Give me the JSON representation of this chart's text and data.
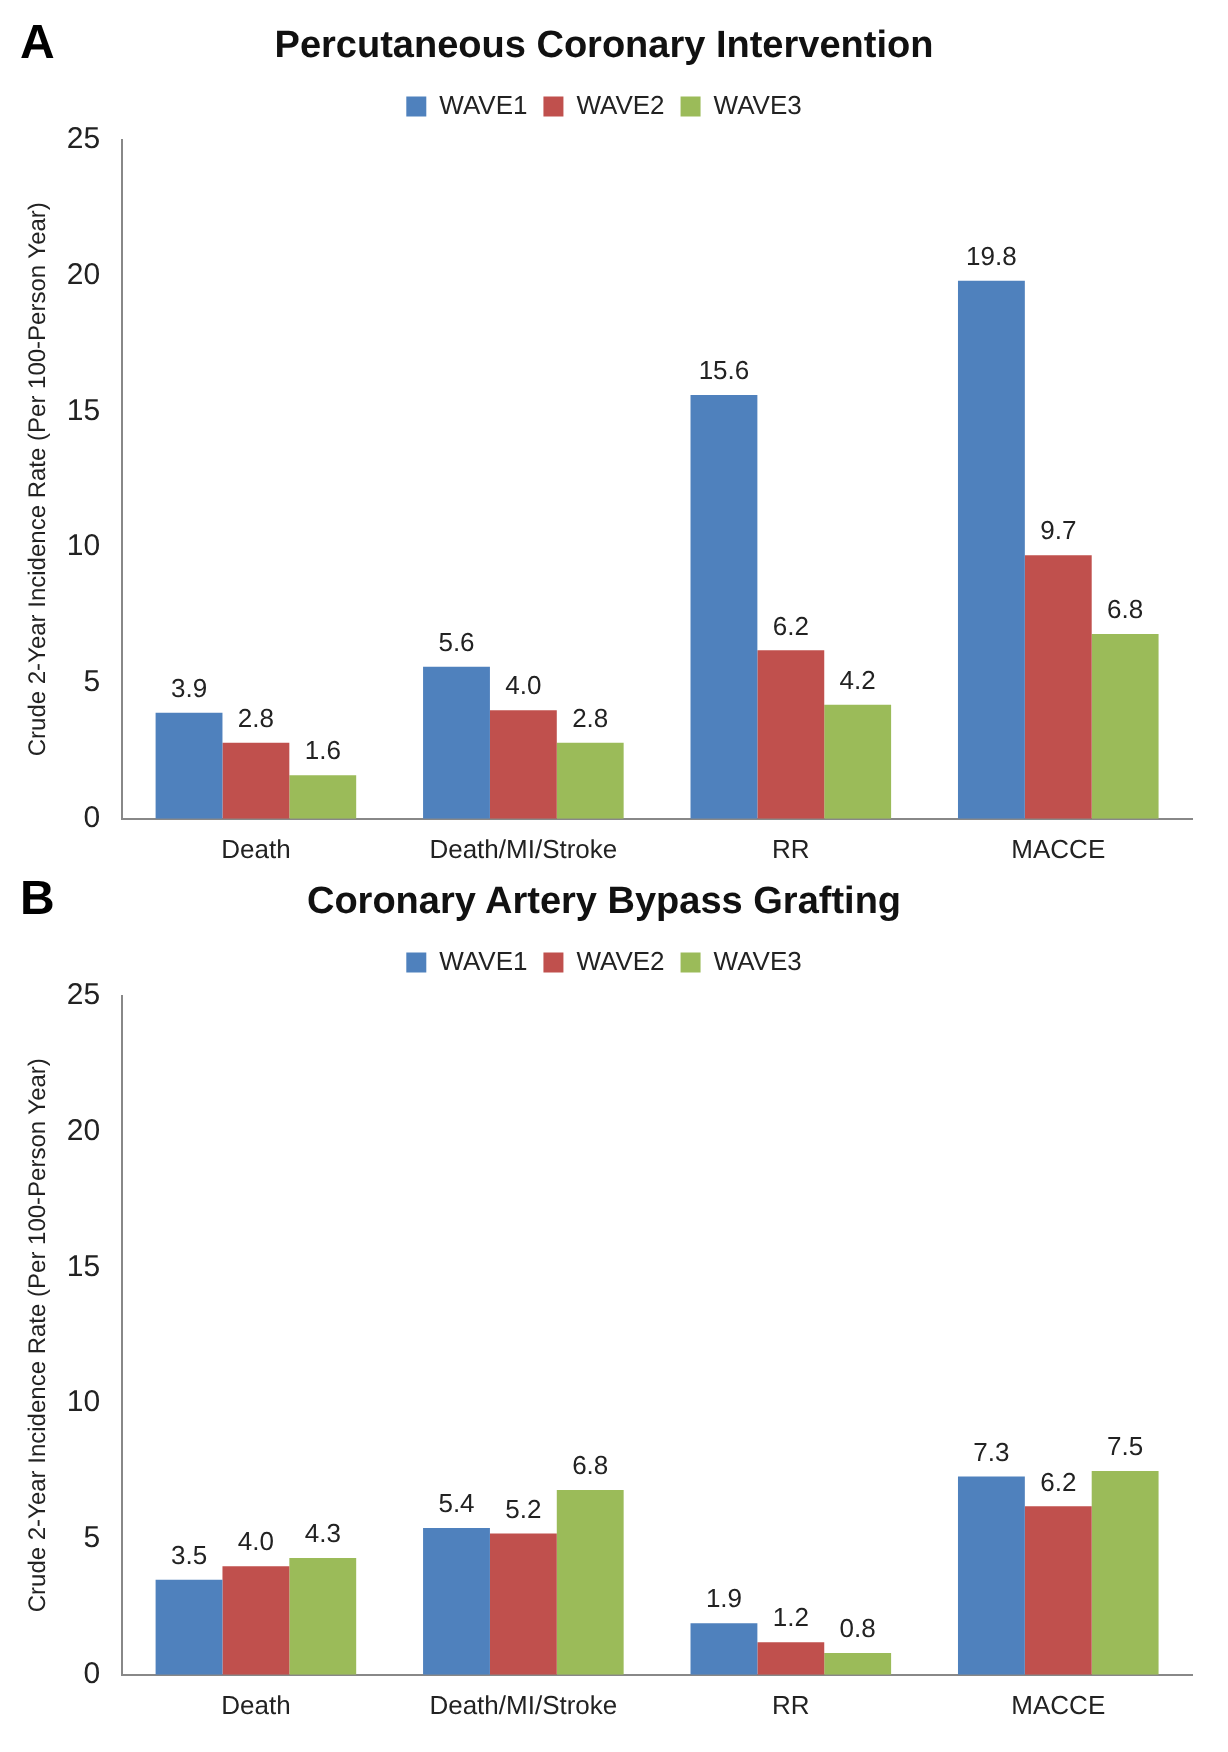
{
  "chart_data": [
    {
      "type": "bar",
      "title": "Percutaneous Coronary Intervention",
      "annotations": [
        "A"
      ],
      "ylabel": "Crude 2-Year Incidence Rate (Per 100-Person Year)",
      "categories": [
        "Death",
        "Death/MI/Stroke",
        "RR",
        "MACCE"
      ],
      "series": [
        {
          "name": "WAVE1",
          "color": "#4f81bd",
          "values": [
            3.9,
            5.6,
            15.6,
            19.8
          ],
          "value_labels": [
            "3.9",
            "5.6",
            "15.6",
            "19.8"
          ]
        },
        {
          "name": "WAVE2",
          "color": "#c0504d",
          "values": [
            2.8,
            4,
            6.2,
            9.7
          ],
          "value_labels": [
            "2.8",
            "4.0",
            "6.2",
            "9.7"
          ]
        },
        {
          "name": "WAVE3",
          "color": "#9bbb59",
          "values": [
            1.6,
            2.8,
            4.2,
            6.8
          ],
          "value_labels": [
            "1.6",
            "2.8",
            "4.2",
            "6.8"
          ]
        }
      ],
      "ylim": [
        0,
        25
      ],
      "yticks": [
        0,
        5,
        10,
        15,
        20,
        25
      ],
      "grid": false,
      "legend": "top"
    },
    {
      "type": "bar",
      "title": "Coronary Artery Bypass Grafting",
      "annotations": [
        "B"
      ],
      "ylabel": "Crude 2-Year Incidence Rate (Per 100-Person Year)",
      "categories": [
        "Death",
        "Death/MI/Stroke",
        "RR",
        "MACCE"
      ],
      "series": [
        {
          "name": "WAVE1",
          "color": "#4f81bd",
          "values": [
            3.5,
            5.4,
            1.9,
            7.3
          ],
          "value_labels": [
            "3.5",
            "5.4",
            "1.9",
            "7.3"
          ]
        },
        {
          "name": "WAVE2",
          "color": "#c0504d",
          "values": [
            4,
            5.2,
            1.2,
            6.2
          ],
          "value_labels": [
            "4.0",
            "5.2",
            "1.2",
            "6.2"
          ]
        },
        {
          "name": "WAVE3",
          "color": "#9bbb59",
          "values": [
            4.3,
            6.8,
            0.8,
            7.5
          ],
          "value_labels": [
            "4.3",
            "6.8",
            "0.8",
            "7.5"
          ]
        }
      ],
      "ylim": [
        0,
        25
      ],
      "yticks": [
        0,
        5,
        10,
        15,
        20,
        25
      ],
      "grid": false,
      "legend": "top"
    }
  ]
}
